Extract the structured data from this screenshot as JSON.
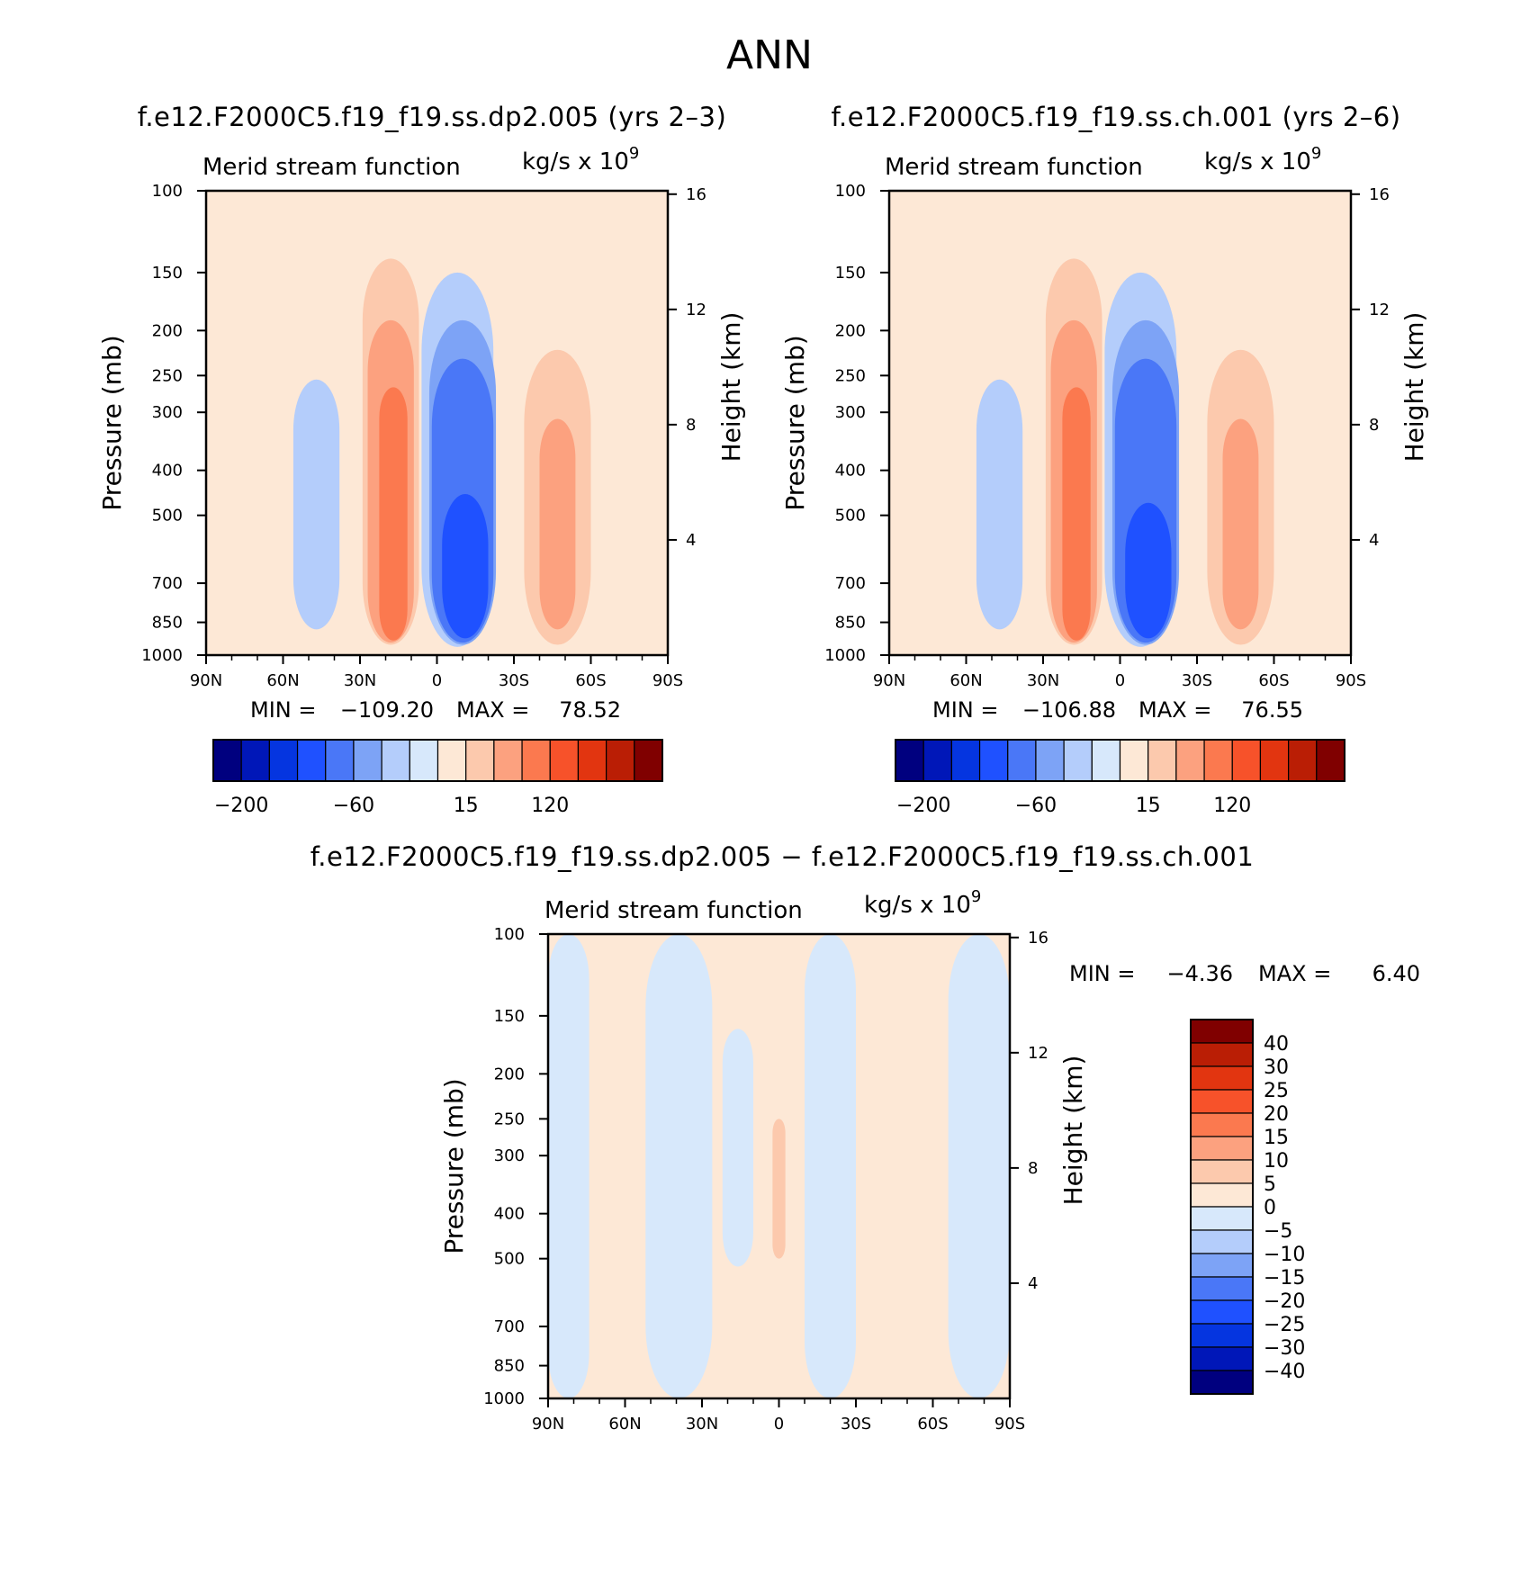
{
  "figure_title": "ANN",
  "colors": {
    "levels": [
      "#00007f",
      "#0017b8",
      "#0535e0",
      "#1f51ff",
      "#4a77f7",
      "#7da3f6",
      "#b4cdfb",
      "#d7e8fb",
      "#fde8d6",
      "#fcc9ad",
      "#fca17f",
      "#fb794f",
      "#f7522a",
      "#e23510",
      "#ba1e05",
      "#800000"
    ]
  },
  "chart_data": [
    {
      "type": "heatmap",
      "title": "f.e12.F2000C5.f19_f19.ss.dp2.005 (yrs 2–3)",
      "subtitle_left": "Merid stream function",
      "units": "kg/s x 10",
      "units_exp": "9",
      "ylabel": "Pressure (mb)",
      "y2label": "Height (km)",
      "x_ticks": [
        "90N",
        "60N",
        "30N",
        "0",
        "30S",
        "60S",
        "90S"
      ],
      "x_ticks_value": [
        90,
        60,
        30,
        0,
        -30,
        -60,
        -90
      ],
      "xlim": [
        90,
        -90
      ],
      "y_ticks": [
        100,
        150,
        200,
        250,
        300,
        400,
        500,
        700,
        850,
        1000
      ],
      "ylim": [
        100,
        1000
      ],
      "y2_ticks": [
        16,
        12,
        8,
        4
      ],
      "min_label": "MIN =",
      "min_value": "−109.20",
      "max_label": "MAX =",
      "max_value": "78.52",
      "colorbar_labels": [
        "−200",
        "−60",
        "15",
        "120"
      ],
      "cells": [
        {
          "lat": -8,
          "p": 600,
          "lat_w": 28,
          "p_lo": 150,
          "p_hi": 960,
          "level": 6
        },
        {
          "lat": -10,
          "p": 560,
          "lat_w": 26,
          "p_lo": 190,
          "p_hi": 950,
          "level": 5
        },
        {
          "lat": -10,
          "p": 560,
          "lat_w": 24,
          "p_lo": 230,
          "p_hi": 940,
          "level": 4
        },
        {
          "lat": -11,
          "p": 620,
          "lat_w": 18,
          "p_lo": 450,
          "p_hi": 920,
          "level": 3
        },
        {
          "lat": 18,
          "p": 520,
          "lat_w": 22,
          "p_lo": 140,
          "p_hi": 950,
          "level": 9
        },
        {
          "lat": 18,
          "p": 520,
          "lat_w": 18,
          "p_lo": 190,
          "p_hi": 940,
          "level": 10
        },
        {
          "lat": 17,
          "p": 520,
          "lat_w": 11,
          "p_lo": 265,
          "p_hi": 930,
          "level": 11
        },
        {
          "lat": -47,
          "p": 500,
          "lat_w": 26,
          "p_lo": 220,
          "p_hi": 950,
          "level": 9
        },
        {
          "lat": -47,
          "p": 500,
          "lat_w": 14,
          "p_lo": 310,
          "p_hi": 880,
          "level": 10
        },
        {
          "lat": 47,
          "p": 480,
          "lat_w": 18,
          "p_lo": 255,
          "p_hi": 880,
          "level": 6
        }
      ]
    },
    {
      "type": "heatmap",
      "title": "f.e12.F2000C5.f19_f19.ss.ch.001 (yrs 2–6)",
      "subtitle_left": "Merid stream function",
      "units": "kg/s x 10",
      "units_exp": "9",
      "ylabel": "Pressure (mb)",
      "y2label": "Height (km)",
      "x_ticks": [
        "90N",
        "60N",
        "30N",
        "0",
        "30S",
        "60S",
        "90S"
      ],
      "x_ticks_value": [
        90,
        60,
        30,
        0,
        -30,
        -60,
        -90
      ],
      "xlim": [
        90,
        -90
      ],
      "y_ticks": [
        100,
        150,
        200,
        250,
        300,
        400,
        500,
        700,
        850,
        1000
      ],
      "ylim": [
        100,
        1000
      ],
      "y2_ticks": [
        16,
        12,
        8,
        4
      ],
      "min_label": "MIN =",
      "min_value": "−106.88",
      "max_label": "MAX =",
      "max_value": "76.55",
      "colorbar_labels": [
        "−200",
        "−60",
        "15",
        "120"
      ],
      "cells": [
        {
          "lat": -8,
          "p": 600,
          "lat_w": 28,
          "p_lo": 150,
          "p_hi": 960,
          "level": 6
        },
        {
          "lat": -10,
          "p": 560,
          "lat_w": 26,
          "p_lo": 190,
          "p_hi": 950,
          "level": 5
        },
        {
          "lat": -10,
          "p": 560,
          "lat_w": 24,
          "p_lo": 230,
          "p_hi": 940,
          "level": 4
        },
        {
          "lat": -11,
          "p": 620,
          "lat_w": 18,
          "p_lo": 470,
          "p_hi": 920,
          "level": 3
        },
        {
          "lat": 18,
          "p": 520,
          "lat_w": 22,
          "p_lo": 140,
          "p_hi": 950,
          "level": 9
        },
        {
          "lat": 18,
          "p": 520,
          "lat_w": 18,
          "p_lo": 190,
          "p_hi": 940,
          "level": 10
        },
        {
          "lat": 17,
          "p": 520,
          "lat_w": 11,
          "p_lo": 265,
          "p_hi": 930,
          "level": 11
        },
        {
          "lat": -47,
          "p": 500,
          "lat_w": 26,
          "p_lo": 220,
          "p_hi": 950,
          "level": 9
        },
        {
          "lat": -47,
          "p": 500,
          "lat_w": 14,
          "p_lo": 310,
          "p_hi": 880,
          "level": 10
        },
        {
          "lat": 47,
          "p": 480,
          "lat_w": 18,
          "p_lo": 255,
          "p_hi": 880,
          "level": 6
        }
      ]
    },
    {
      "type": "heatmap",
      "title": "f.e12.F2000C5.f19_f19.ss.dp2.005 − f.e12.F2000C5.f19_f19.ss.ch.001",
      "subtitle_left": "Merid stream function",
      "units": "kg/s x 10",
      "units_exp": "9",
      "ylabel": "Pressure (mb)",
      "y2label": "Height (km)",
      "x_ticks": [
        "90N",
        "60N",
        "30N",
        "0",
        "30S",
        "60S",
        "90S"
      ],
      "x_ticks_value": [
        90,
        60,
        30,
        0,
        -30,
        -60,
        -90
      ],
      "xlim": [
        90,
        -90
      ],
      "y_ticks": [
        100,
        150,
        200,
        250,
        300,
        400,
        500,
        700,
        850,
        1000
      ],
      "ylim": [
        100,
        1000
      ],
      "y2_ticks": [
        16,
        12,
        8,
        4
      ],
      "min_label": "MIN =",
      "min_value": "−4.36",
      "max_label": "MAX =",
      "max_value": "6.40",
      "colorbar_labels": [
        "40",
        "30",
        "25",
        "20",
        "15",
        "10",
        "5",
        "0",
        "−5",
        "−10",
        "−15",
        "−20",
        "−25",
        "−30",
        "−40"
      ],
      "cells": [
        {
          "lat": 82,
          "p": 550,
          "lat_w": 16,
          "p_lo": 100,
          "p_hi": 1000,
          "level": 7
        },
        {
          "lat": 39,
          "p": 550,
          "lat_w": 26,
          "p_lo": 100,
          "p_hi": 1000,
          "level": 7
        },
        {
          "lat": 16,
          "p": 400,
          "lat_w": 12,
          "p_lo": 160,
          "p_hi": 520,
          "level": 7
        },
        {
          "lat": -20,
          "p": 550,
          "lat_w": 20,
          "p_lo": 100,
          "p_hi": 1000,
          "level": 7
        },
        {
          "lat": -78,
          "p": 550,
          "lat_w": 24,
          "p_lo": 100,
          "p_hi": 1000,
          "level": 7
        },
        {
          "lat": 0,
          "p": 380,
          "lat_w": 5,
          "p_lo": 250,
          "p_hi": 500,
          "level": 9
        }
      ]
    }
  ]
}
